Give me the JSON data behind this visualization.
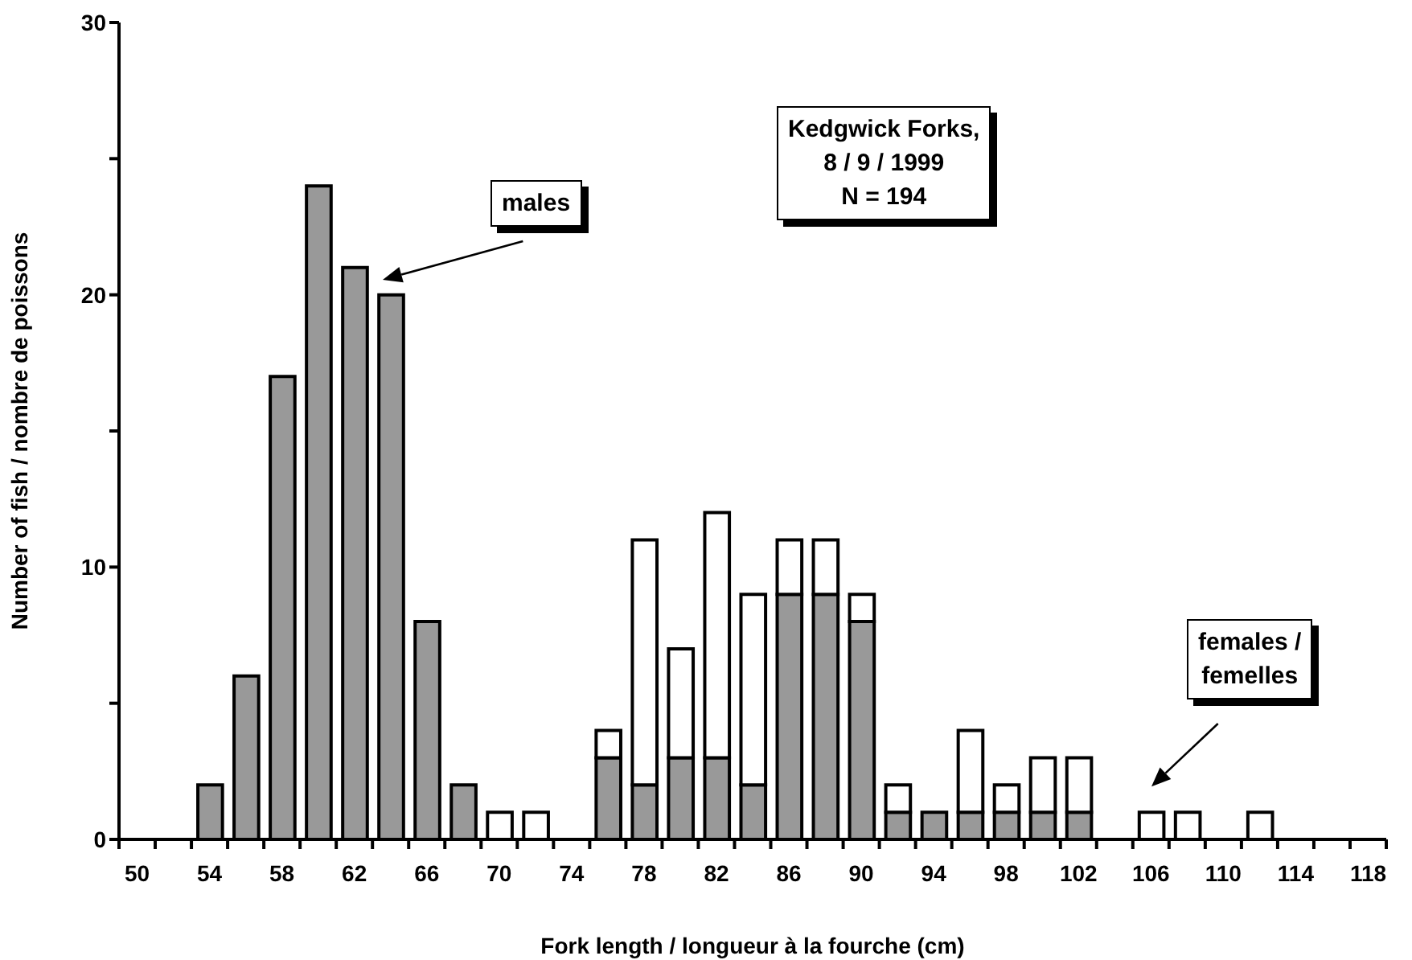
{
  "chart_data": {
    "type": "bar",
    "stacked": true,
    "xlabel": "Fork length / longueur à la fourche (cm)",
    "ylabel": "Number of fish / nombre de poissons",
    "categories": [
      "50",
      null,
      "54",
      null,
      "58",
      null,
      "62",
      null,
      "66",
      null,
      "70",
      null,
      "74",
      null,
      "78",
      null,
      "82",
      null,
      "86",
      null,
      "90",
      null,
      "94",
      null,
      "98",
      null,
      "102",
      null,
      "106",
      null,
      "110",
      null,
      "114",
      null,
      "118"
    ],
    "series": [
      {
        "name": "males",
        "color": "#999999",
        "values": [
          0,
          0,
          2,
          6,
          17,
          24,
          21,
          20,
          8,
          2,
          0,
          0,
          0,
          3,
          2,
          3,
          3,
          2,
          9,
          9,
          8,
          1,
          1,
          1,
          1,
          1,
          1,
          0,
          0,
          0,
          0,
          0,
          0,
          0,
          0
        ]
      },
      {
        "name": "females / femelles",
        "color": "#ffffff",
        "values": [
          0,
          0,
          0,
          0,
          0,
          0,
          0,
          0,
          0,
          0,
          1,
          1,
          0,
          1,
          9,
          4,
          9,
          7,
          2,
          2,
          1,
          1,
          0,
          3,
          1,
          2,
          2,
          0,
          1,
          1,
          0,
          1,
          0,
          0,
          0
        ]
      }
    ],
    "ylim": [
      0,
      30
    ],
    "yticks": [
      0,
      {
        "value": 5,
        "label": null
      },
      10,
      {
        "value": 15,
        "label": null
      },
      20,
      {
        "value": 25,
        "label": null
      },
      30
    ],
    "annotations": [
      "Kedgwick Forks,\n8 / 9 / 1999\nN = 194"
    ],
    "grid": false,
    "legend": false
  }
}
